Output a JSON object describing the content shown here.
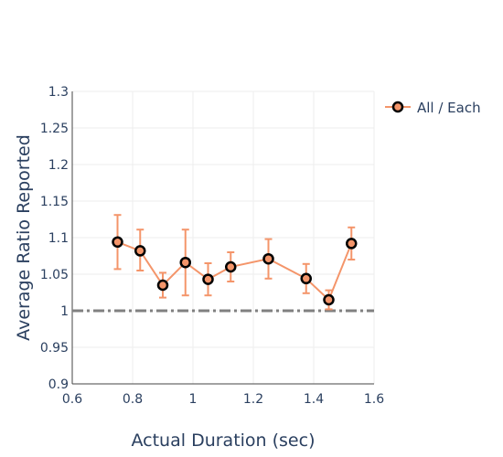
{
  "chart_data": {
    "type": "line",
    "xlabel": "Actual Duration (sec)",
    "ylabel": "Average Ratio Reported",
    "xlim": [
      0.6,
      1.6
    ],
    "ylim": [
      0.9,
      1.3
    ],
    "x_ticks": [
      "0.6",
      "0.8",
      "1",
      "1.2",
      "1.4",
      "1.6"
    ],
    "y_ticks": [
      "0.9",
      "0.95",
      "1",
      "1.05",
      "1.1",
      "1.15",
      "1.2",
      "1.25",
      "1.3"
    ],
    "grid": true,
    "legend_position": "top-right",
    "reference_line": {
      "y": 1.0,
      "style": "dash-dot",
      "color": "#808080"
    },
    "series": [
      {
        "name": "All / Each",
        "color": "#f4956a",
        "marker_edge_color": "#000000",
        "x": [
          0.75,
          0.825,
          0.9,
          0.975,
          1.05,
          1.125,
          1.25,
          1.375,
          1.45,
          1.525
        ],
        "y": [
          1.094,
          1.082,
          1.035,
          1.066,
          1.043,
          1.06,
          1.071,
          1.044,
          1.015,
          1.092
        ],
        "error_upper": [
          1.131,
          1.111,
          1.052,
          1.111,
          1.065,
          1.08,
          1.098,
          1.064,
          1.028,
          1.114
        ],
        "error_lower": [
          1.057,
          1.055,
          1.018,
          1.021,
          1.021,
          1.04,
          1.044,
          1.024,
          1.002,
          1.07
        ]
      }
    ]
  }
}
